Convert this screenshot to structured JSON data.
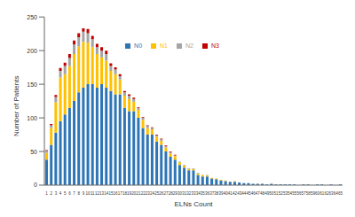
{
  "chart_data": {
    "type": "bar",
    "stacked": true,
    "x_label": "ELNs Count",
    "y_label": "Number of Patients",
    "categories": [
      "1",
      "2",
      "3",
      "4",
      "5",
      "6",
      "7",
      "8",
      "9",
      "10",
      "11",
      "12",
      "13",
      "14",
      "15",
      "16",
      "17",
      "18",
      "19",
      "20",
      "21",
      "22",
      "23",
      "24",
      "25",
      "26",
      "27",
      "28",
      "29",
      "30",
      "31",
      "32",
      "33",
      "34",
      "35",
      "36",
      "37",
      "38",
      "39",
      "40",
      "41",
      "42",
      "43",
      "44",
      "45",
      "46",
      "47",
      "48",
      "49",
      "50",
      "51",
      "52",
      "53",
      "54",
      "55",
      "56",
      "57",
      "58",
      "59",
      "60",
      "61",
      "62",
      "63",
      "64",
      "65"
    ],
    "series": [
      {
        "name": "N0",
        "color": "#2e75b6",
        "values": [
          38,
          60,
          78,
          95,
          105,
          115,
          125,
          138,
          145,
          150,
          150,
          145,
          150,
          145,
          140,
          135,
          135,
          115,
          110,
          110,
          100,
          85,
          75,
          75,
          65,
          60,
          50,
          42,
          38,
          30,
          26,
          22,
          22,
          15,
          13,
          13,
          10,
          9,
          7,
          6,
          5,
          5,
          4,
          3,
          3,
          2,
          2,
          2,
          1,
          2,
          1,
          1,
          1,
          1,
          1,
          0,
          1,
          1,
          0,
          1,
          1,
          0,
          1,
          0,
          1
        ]
      },
      {
        "name": "N1",
        "color": "#ffc000",
        "values": [
          10,
          25,
          45,
          65,
          60,
          62,
          70,
          68,
          68,
          62,
          55,
          50,
          40,
          40,
          30,
          30,
          22,
          18,
          18,
          14,
          12,
          12,
          10,
          8,
          7,
          6,
          6,
          5,
          5,
          4,
          3,
          2,
          2,
          2,
          2,
          1,
          1,
          1,
          1,
          1,
          0,
          1,
          0,
          0,
          0,
          0,
          0,
          0,
          0,
          0,
          0,
          0,
          0,
          0,
          0,
          0,
          0,
          0,
          0,
          0,
          0,
          0,
          0,
          0,
          0
        ]
      },
      {
        "name": "N2",
        "color": "#a5a5a5",
        "values": [
          3,
          4,
          8,
          10,
          12,
          12,
          14,
          14,
          15,
          14,
          12,
          10,
          10,
          10,
          7,
          7,
          5,
          5,
          5,
          4,
          3,
          3,
          3,
          2,
          2,
          2,
          2,
          2,
          1,
          1,
          1,
          1,
          1,
          1,
          0,
          1,
          0,
          0,
          0,
          0,
          0,
          0,
          0,
          0,
          0,
          0,
          0,
          0,
          0,
          0,
          0,
          0,
          0,
          0,
          0,
          0,
          0,
          0,
          0,
          0,
          0,
          0,
          0,
          0,
          0
        ]
      },
      {
        "name": "N3",
        "color": "#c00000",
        "values": [
          1,
          2,
          3,
          4,
          5,
          6,
          6,
          6,
          5,
          6,
          5,
          5,
          5,
          5,
          4,
          3,
          3,
          2,
          2,
          2,
          1,
          1,
          1,
          1,
          1,
          1,
          1,
          1,
          1,
          0,
          0,
          0,
          0,
          0,
          0,
          0,
          0,
          0,
          0,
          0,
          0,
          0,
          0,
          0,
          0,
          0,
          0,
          0,
          0,
          0,
          0,
          0,
          0,
          0,
          0,
          0,
          0,
          0,
          0,
          0,
          0,
          0,
          0,
          0,
          0
        ]
      }
    ],
    "ylim": [
      0,
      250
    ],
    "yticks": [
      0,
      50,
      100,
      150,
      200,
      250
    ],
    "grid": false,
    "legend": "top"
  }
}
